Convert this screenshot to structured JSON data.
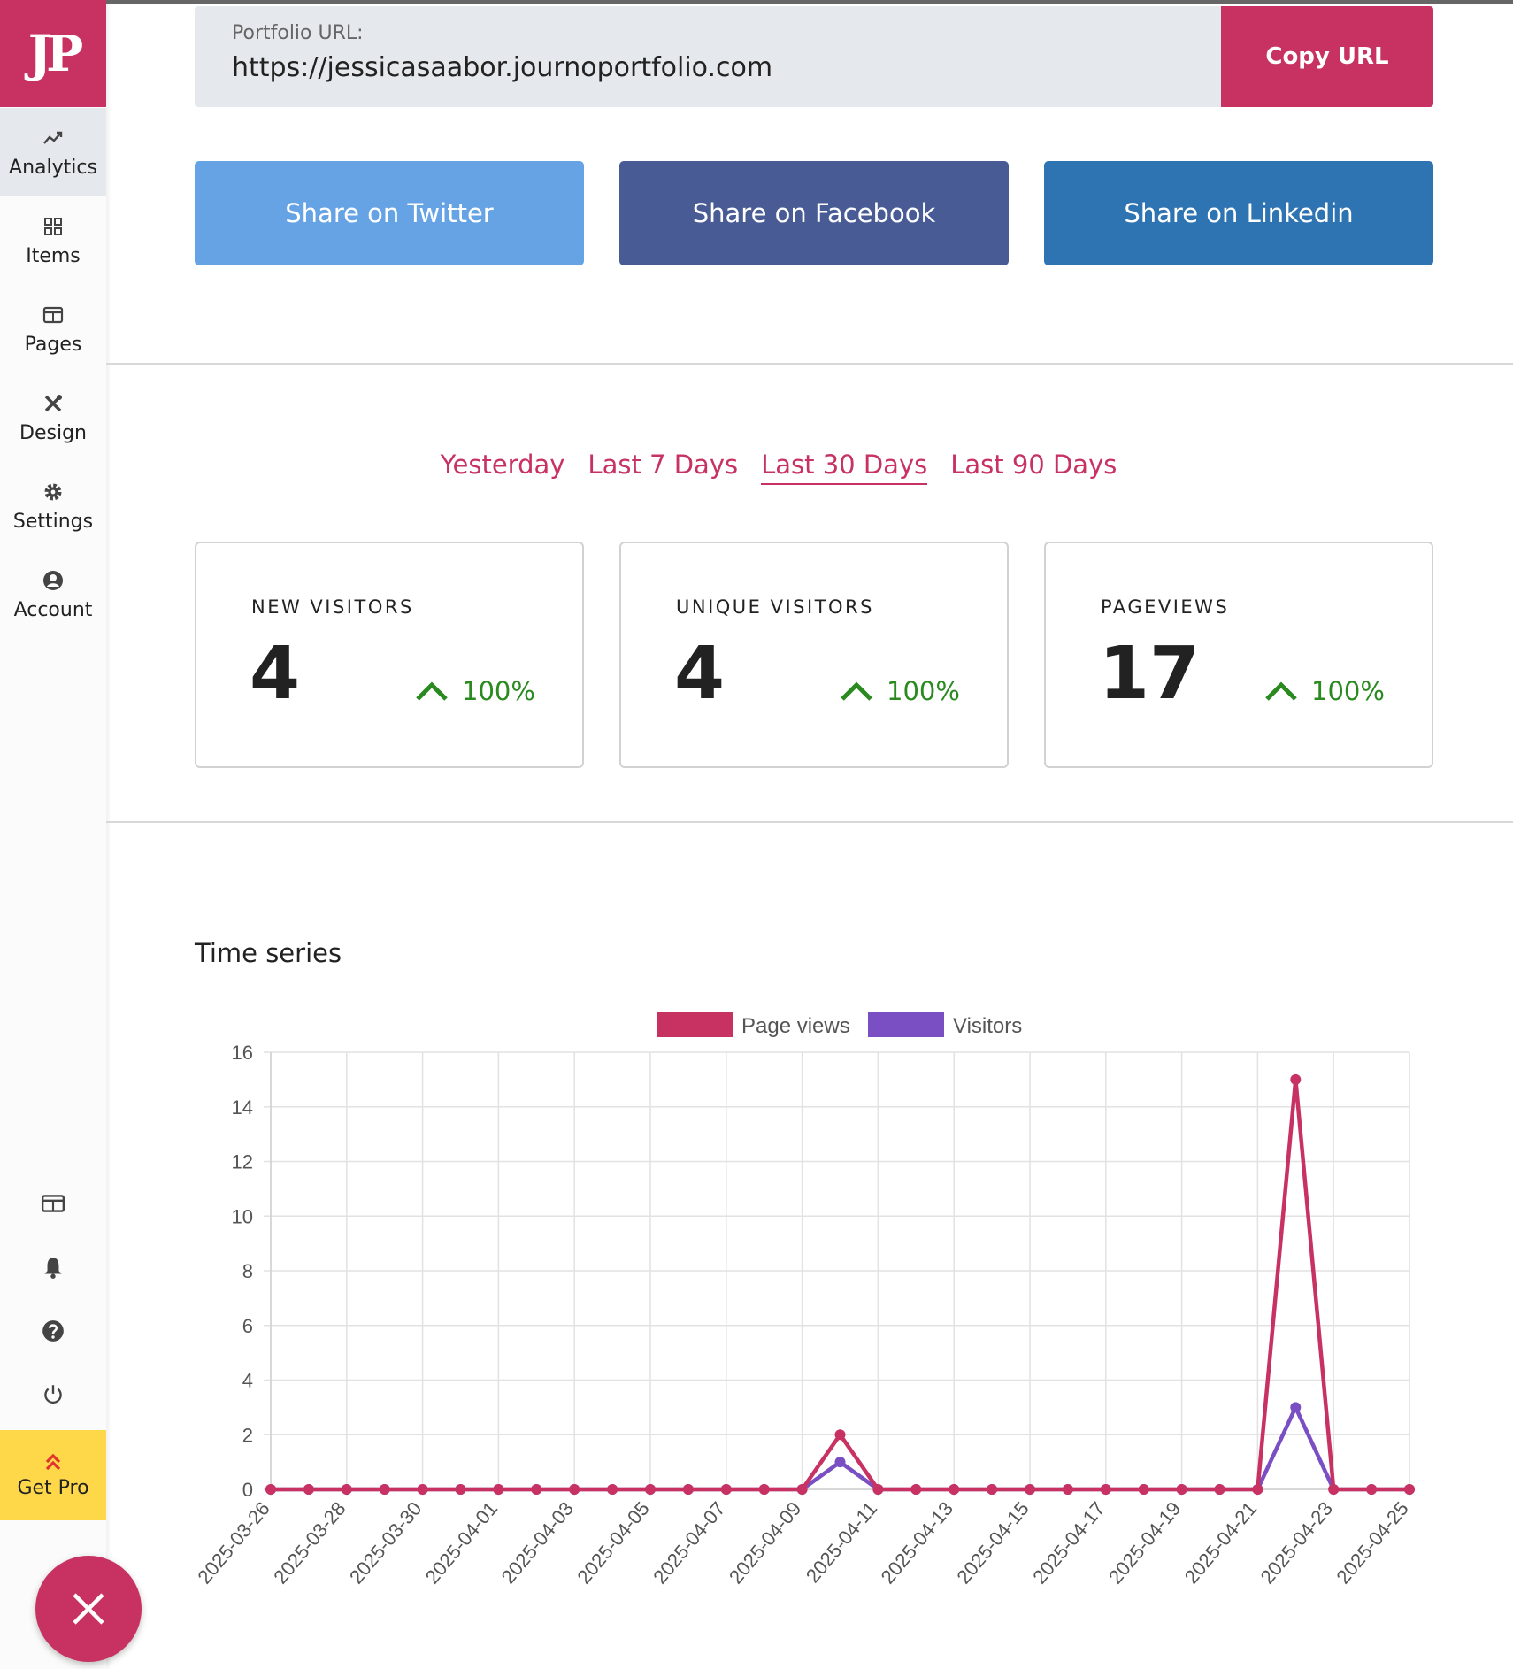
{
  "sidebar": {
    "logo": "JP",
    "items": [
      {
        "label": "Analytics",
        "icon": "analytics-icon",
        "active": true
      },
      {
        "label": "Items",
        "icon": "grid-icon",
        "active": false
      },
      {
        "label": "Pages",
        "icon": "page-icon",
        "active": false
      },
      {
        "label": "Design",
        "icon": "design-tools-icon",
        "active": false
      },
      {
        "label": "Settings",
        "icon": "gear-icon",
        "active": false
      },
      {
        "label": "Account",
        "icon": "user-circle-icon",
        "active": false
      }
    ],
    "utility_icons": [
      "browser-window-icon",
      "bell-icon",
      "help-icon",
      "power-icon"
    ],
    "get_pro_label": "Get Pro"
  },
  "portfolio": {
    "label": "Portfolio URL:",
    "url": "https://jessicasaabor.journoportfolio.com",
    "copy_label": "Copy URL"
  },
  "share": {
    "twitter": "Share on Twitter",
    "facebook": "Share on Facebook",
    "linkedin": "Share on Linkedin"
  },
  "range_tabs": {
    "items": [
      "Yesterday",
      "Last 7 Days",
      "Last 30 Days",
      "Last 90 Days"
    ],
    "active": "Last 30 Days"
  },
  "stats": [
    {
      "title": "NEW VISITORS",
      "value": "4",
      "change": "100%"
    },
    {
      "title": "UNIQUE VISITORS",
      "value": "4",
      "change": "100%"
    },
    {
      "title": "PAGEVIEWS",
      "value": "17",
      "change": "100%"
    }
  ],
  "colors": {
    "brand": "#c83262",
    "positive": "#2a8a20",
    "visitors": "#7b4fc4",
    "get_pro": "#ffd84a"
  },
  "time_series_title": "Time series",
  "chart_data": {
    "type": "line",
    "title": "",
    "xlabel": "",
    "ylabel": "",
    "ylim": [
      0,
      16
    ],
    "yticks": [
      0,
      2,
      4,
      6,
      8,
      10,
      12,
      14,
      16
    ],
    "grid": true,
    "legend": "top-center",
    "x": [
      "2025-03-26",
      "2025-03-27",
      "2025-03-28",
      "2025-03-29",
      "2025-03-30",
      "2025-03-31",
      "2025-04-01",
      "2025-04-02",
      "2025-04-03",
      "2025-04-04",
      "2025-04-05",
      "2025-04-06",
      "2025-04-07",
      "2025-04-08",
      "2025-04-09",
      "2025-04-10",
      "2025-04-11",
      "2025-04-12",
      "2025-04-13",
      "2025-04-14",
      "2025-04-15",
      "2025-04-16",
      "2025-04-17",
      "2025-04-18",
      "2025-04-19",
      "2025-04-20",
      "2025-04-21",
      "2025-04-22",
      "2025-04-23",
      "2025-04-24",
      "2025-04-25"
    ],
    "xtick_labels": [
      "2025-03-26",
      "2025-03-28",
      "2025-03-30",
      "2025-04-01",
      "2025-04-03",
      "2025-04-05",
      "2025-04-07",
      "2025-04-09",
      "2025-04-11",
      "2025-04-13",
      "2025-04-15",
      "2025-04-17",
      "2025-04-19",
      "2025-04-21",
      "2025-04-23",
      "2025-04-25"
    ],
    "series": [
      {
        "name": "Page views",
        "color": "#c83262",
        "values": [
          0,
          0,
          0,
          0,
          0,
          0,
          0,
          0,
          0,
          0,
          0,
          0,
          0,
          0,
          0,
          2,
          0,
          0,
          0,
          0,
          0,
          0,
          0,
          0,
          0,
          0,
          0,
          15,
          0,
          0,
          0
        ]
      },
      {
        "name": "Visitors",
        "color": "#7b4fc4",
        "values": [
          0,
          0,
          0,
          0,
          0,
          0,
          0,
          0,
          0,
          0,
          0,
          0,
          0,
          0,
          0,
          1,
          0,
          0,
          0,
          0,
          0,
          0,
          0,
          0,
          0,
          0,
          0,
          3,
          0,
          0,
          0
        ]
      }
    ]
  }
}
